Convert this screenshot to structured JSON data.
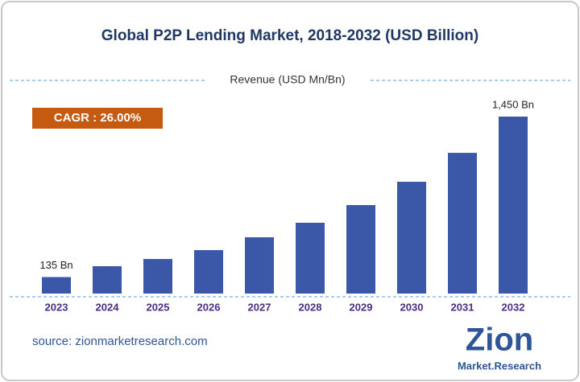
{
  "chart_data": {
    "type": "bar",
    "title": "Global P2P Lending Market, 2018-2032 (USD Billion)",
    "subtitle": "Revenue (USD Mn/Bn)",
    "annotation": "CAGR : 26.00%",
    "source": "source: zionmarketresearch.com",
    "logo": {
      "name": "Zion",
      "tagline": "Market.Research"
    },
    "categories": [
      "2023",
      "2024",
      "2025",
      "2026",
      "2027",
      "2028",
      "2029",
      "2030",
      "2031",
      "2032"
    ],
    "values": [
      135,
      224,
      283,
      356,
      461,
      580,
      725,
      916,
      1153,
      1450
    ],
    "value_labels": [
      "135 Bn",
      null,
      null,
      null,
      null,
      null,
      null,
      null,
      null,
      "1,450 Bn"
    ],
    "color": "#3a57a8"
  }
}
